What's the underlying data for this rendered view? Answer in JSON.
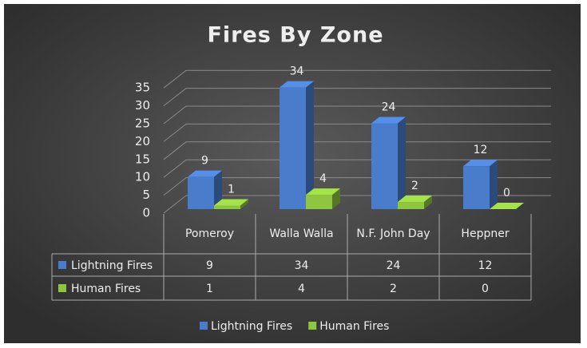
{
  "chart_data": {
    "type": "bar3d",
    "title": "Fires By Zone",
    "categories": [
      "Pomeroy",
      "Walla Walla",
      "N.F. John Day",
      "Heppner"
    ],
    "series": [
      {
        "name": "Lightning Fires",
        "color": "#4a7ccc",
        "values": [
          9,
          34,
          24,
          12
        ]
      },
      {
        "name": "Human Fires",
        "color": "#8fc640",
        "values": [
          1,
          4,
          2,
          0
        ]
      }
    ],
    "ylim": [
      0,
      35
    ],
    "yticks": [
      0,
      5,
      10,
      15,
      20,
      25,
      30,
      35
    ],
    "grid": true,
    "data_table": true,
    "legend": "bottom"
  }
}
